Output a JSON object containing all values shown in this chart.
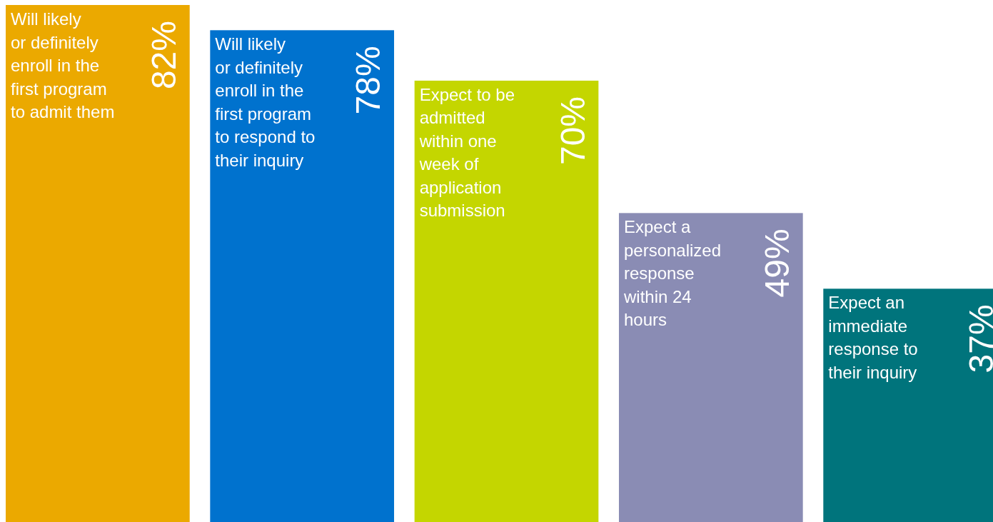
{
  "chart_data": {
    "type": "bar",
    "categories": [
      "Will likely or definitely enroll in the first program to admit them",
      "Will likely or definitely enroll in the first program to respond to their inquiry",
      "Expect to be admitted within one week of application submission",
      "Expect a personalized response within 24 hours",
      "Expect an immediate response to their inquiry"
    ],
    "values": [
      82,
      78,
      70,
      49,
      37
    ],
    "colors": [
      "#eba900",
      "#0072ce",
      "#c4d600",
      "#8a8cb4",
      "#00747c"
    ],
    "value_labels": [
      "82%",
      "78%",
      "70%",
      "49%",
      "37%"
    ]
  }
}
